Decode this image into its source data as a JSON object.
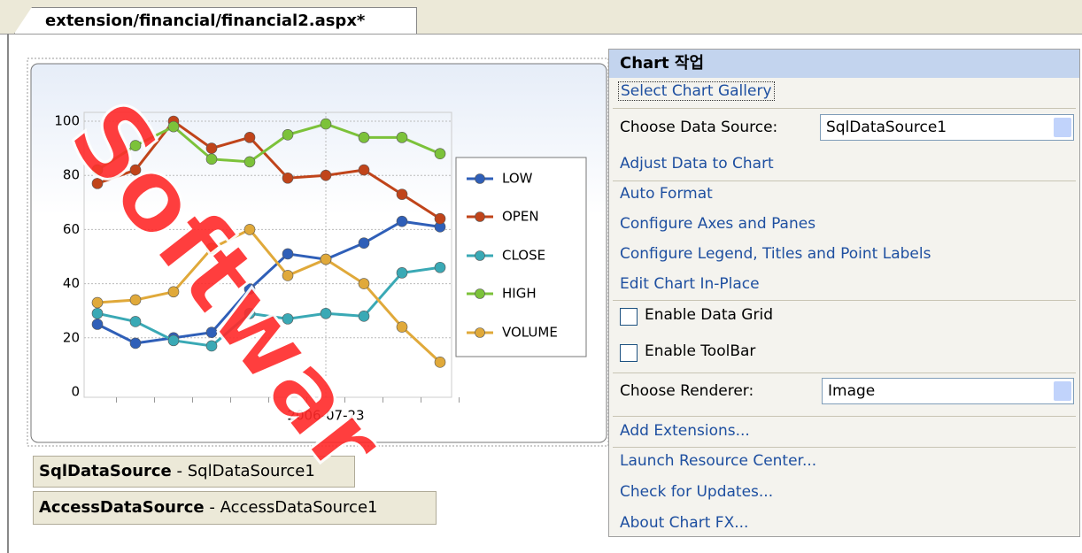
{
  "tab": "extension/financial/financial2.aspx*",
  "watermark": "Softwar",
  "chart_data": {
    "type": "line",
    "categories": [
      null,
      null,
      null,
      null,
      null,
      null,
      "2006-07-23",
      null,
      null,
      null
    ],
    "series": [
      {
        "name": "LOW",
        "color": "#2f5fb8",
        "values": [
          25,
          18,
          20,
          22,
          38,
          51,
          49,
          55,
          63,
          61
        ]
      },
      {
        "name": "OPEN",
        "color": "#c0441a",
        "values": [
          77,
          82,
          100,
          90,
          94,
          79,
          80,
          82,
          73,
          64
        ]
      },
      {
        "name": "CLOSE",
        "color": "#3aa9b5",
        "values": [
          29,
          26,
          19,
          17,
          29,
          27,
          29,
          28,
          44,
          46
        ]
      },
      {
        "name": "HIGH",
        "color": "#7cc23a",
        "values": [
          82,
          91,
          98,
          86,
          85,
          95,
          99,
          94,
          94,
          88
        ]
      },
      {
        "name": "VOLUME",
        "color": "#e0a93a",
        "values": [
          33,
          34,
          37,
          53,
          60,
          43,
          49,
          40,
          24,
          11
        ]
      }
    ],
    "ylim": [
      0,
      100
    ],
    "yticks": [
      0,
      20,
      40,
      60,
      80,
      100
    ],
    "grid": true,
    "legend": "right"
  },
  "data_sources": [
    {
      "name": "SqlDataSource",
      "detail": "- SqlDataSource1"
    },
    {
      "name": "AccessDataSource",
      "detail": "- AccessDataSource1"
    }
  ],
  "panel": {
    "title": "Chart 작업",
    "gallery": "Select Chart Gallery",
    "data_source_label": "Choose Data Source:",
    "data_source_value": "SqlDataSource1",
    "adjust": "Adjust Data to Chart",
    "links": [
      "Auto Format",
      "Configure Axes and Panes",
      "Configure Legend, Titles and Point Labels",
      "Edit Chart In-Place"
    ],
    "checkboxes": [
      "Enable Data Grid",
      "Enable ToolBar"
    ],
    "renderer_label": "Choose Renderer:",
    "renderer_value": "Image",
    "extensions": "Add Extensions...",
    "footer_links": [
      "Launch Resource Center...",
      "Check for Updates...",
      "About Chart FX..."
    ]
  }
}
